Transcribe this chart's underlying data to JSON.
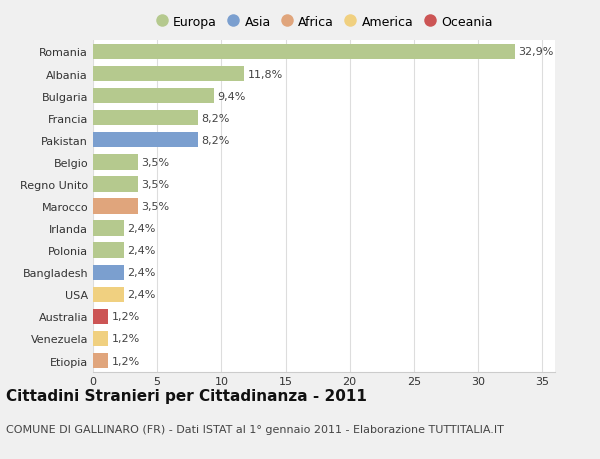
{
  "countries": [
    "Romania",
    "Albania",
    "Bulgaria",
    "Francia",
    "Pakistan",
    "Belgio",
    "Regno Unito",
    "Marocco",
    "Irlanda",
    "Polonia",
    "Bangladesh",
    "USA",
    "Australia",
    "Venezuela",
    "Etiopia"
  ],
  "values": [
    32.9,
    11.8,
    9.4,
    8.2,
    8.2,
    3.5,
    3.5,
    3.5,
    2.4,
    2.4,
    2.4,
    2.4,
    1.2,
    1.2,
    1.2
  ],
  "labels": [
    "32,9%",
    "11,8%",
    "9,4%",
    "8,2%",
    "8,2%",
    "3,5%",
    "3,5%",
    "3,5%",
    "2,4%",
    "2,4%",
    "2,4%",
    "2,4%",
    "1,2%",
    "1,2%",
    "1,2%"
  ],
  "continents": [
    "Europa",
    "Europa",
    "Europa",
    "Europa",
    "Asia",
    "Europa",
    "Europa",
    "Africa",
    "Europa",
    "Europa",
    "Asia",
    "America",
    "Oceania",
    "America",
    "Africa"
  ],
  "continent_colors": {
    "Europa": "#b5c98e",
    "Asia": "#7b9fcf",
    "Africa": "#e0a57c",
    "America": "#f0d080",
    "Oceania": "#cc5555"
  },
  "legend_order": [
    "Europa",
    "Asia",
    "Africa",
    "America",
    "Oceania"
  ],
  "title": "Cittadini Stranieri per Cittadinanza - 2011",
  "subtitle": "COMUNE DI GALLINARO (FR) - Dati ISTAT al 1° gennaio 2011 - Elaborazione TUTTITALIA.IT",
  "xlim": [
    0,
    36
  ],
  "xticks": [
    0,
    5,
    10,
    15,
    20,
    25,
    30,
    35
  ],
  "background_color": "#f0f0f0",
  "plot_background": "#ffffff",
  "grid_color": "#dddddd",
  "bar_height": 0.7,
  "title_fontsize": 11,
  "subtitle_fontsize": 8,
  "label_fontsize": 8,
  "tick_fontsize": 8,
  "legend_fontsize": 9
}
